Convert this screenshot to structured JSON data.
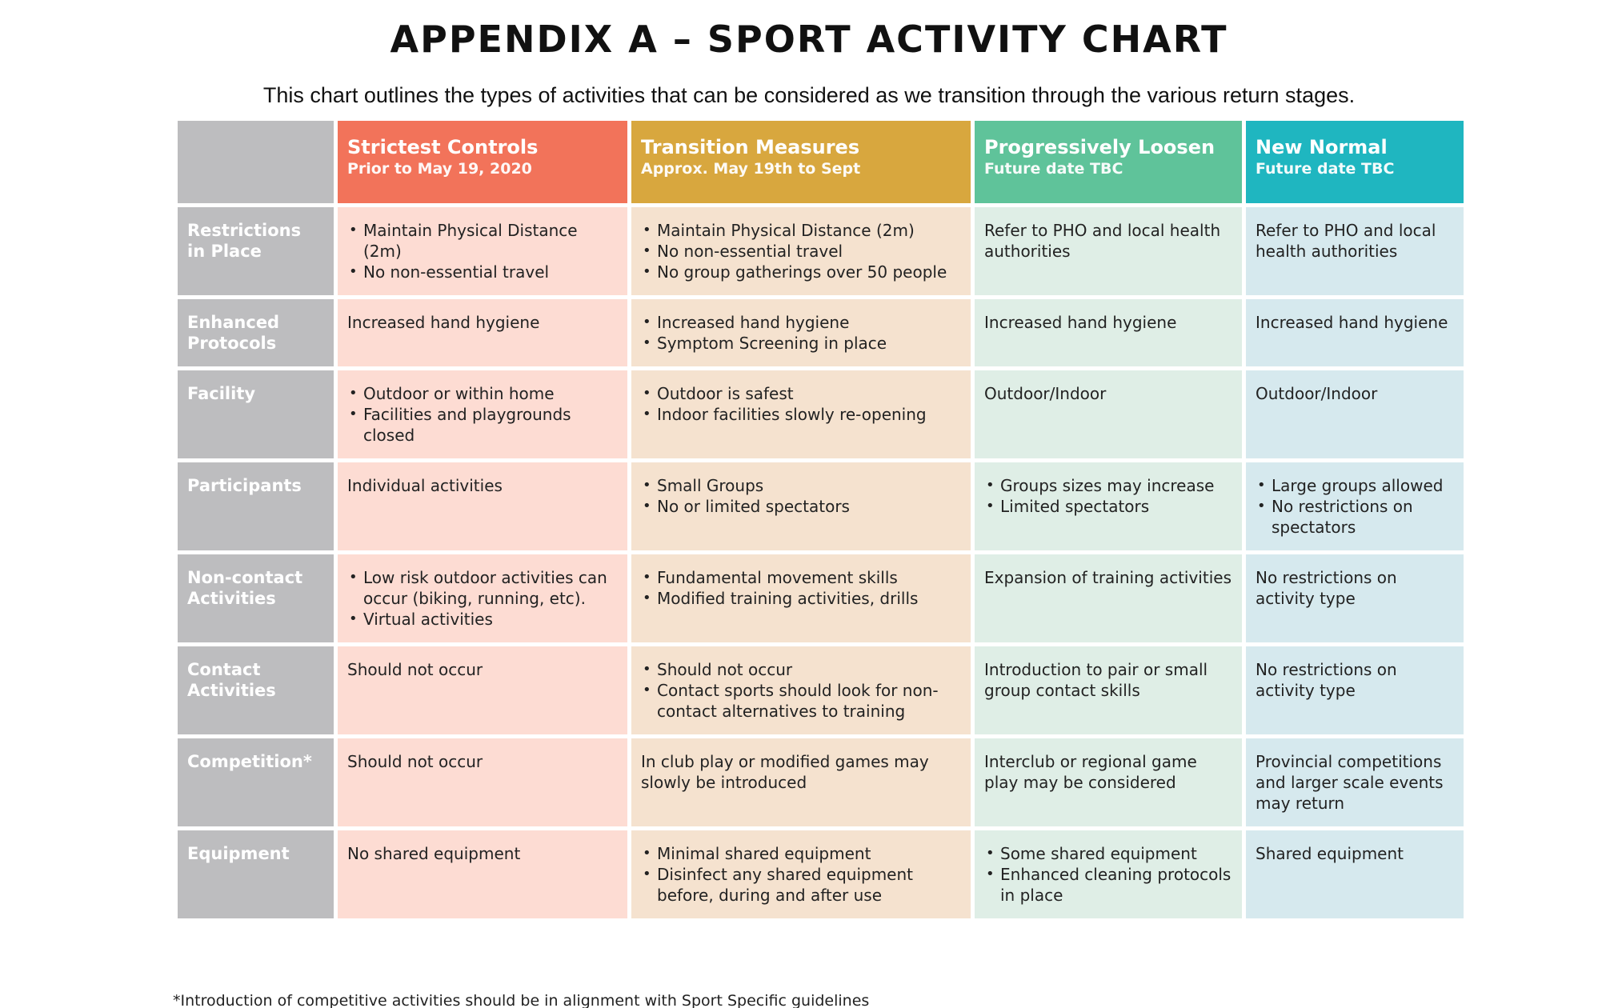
{
  "title": "APPENDIX A – SPORT ACTIVITY CHART",
  "subtitle": "This chart outlines the types of activities that can be considered as we transition through the various return stages.",
  "colors": {
    "strictest": "#f2735a",
    "transition": "#d8a73e",
    "loosen": "#5fc39a",
    "new_normal": "#1fb6c0",
    "row_header": "#bdbdbf"
  },
  "stages": [
    {
      "name": "Strictest Controls",
      "date": "Prior to May 19, 2020"
    },
    {
      "name": "Transition Measures",
      "date": "Approx. May 19th to Sept"
    },
    {
      "name": "Progressively Loosen",
      "date": "Future date TBC"
    },
    {
      "name": "New Normal",
      "date": "Future date TBC"
    }
  ],
  "rows": [
    {
      "label": "Restrictions in Place",
      "cells": [
        [
          "Maintain Physical Distance (2m)",
          "No non-essential travel"
        ],
        [
          "Maintain Physical Distance (2m)",
          "No non-essential travel",
          "No group gatherings over 50 people"
        ],
        "Refer to PHO and local health authorities",
        "Refer to PHO and local health authorities"
      ]
    },
    {
      "label": "Enhanced Protocols",
      "cells": [
        "Increased hand hygiene",
        [
          "Increased hand hygiene",
          "Symptom Screening in place"
        ],
        "Increased hand hygiene",
        "Increased hand hygiene"
      ]
    },
    {
      "label": "Facility",
      "cells": [
        [
          "Outdoor or within home",
          "Facilities and playgrounds closed"
        ],
        [
          "Outdoor is safest",
          "Indoor facilities slowly re-opening"
        ],
        "Outdoor/Indoor",
        "Outdoor/Indoor"
      ]
    },
    {
      "label": "Participants",
      "cells": [
        "Individual activities",
        [
          "Small Groups",
          "No or limited spectators"
        ],
        [
          "Groups sizes may increase",
          "Limited spectators"
        ],
        [
          "Large groups allowed",
          "No restrictions on spectators"
        ]
      ]
    },
    {
      "label": "Non-contact Activities",
      "cells": [
        [
          "Low risk outdoor activities can occur (biking, running, etc).",
          "Virtual activities"
        ],
        [
          "Fundamental movement skills",
          "Modified training activities, drills"
        ],
        "Expansion of training activities",
        "No restrictions on activity type"
      ]
    },
    {
      "label": "Contact Activities",
      "cells": [
        "Should not occur",
        [
          "Should not occur",
          "Contact sports should look for non-contact alternatives to training"
        ],
        "Introduction to pair or small group contact skills",
        "No restrictions on activity type"
      ]
    },
    {
      "label": "Competition*",
      "cells": [
        "Should not occur",
        "In club play or modified games may slowly be introduced",
        "Interclub or regional game play may be considered",
        "Provincial competitions and larger scale events may return"
      ]
    },
    {
      "label": "Equipment",
      "cells": [
        "No shared equipment",
        [
          "Minimal shared equipment",
          "Disinfect any shared equipment before, during and after use"
        ],
        [
          "Some shared equipment",
          "Enhanced cleaning protocols in place"
        ],
        "Shared equipment"
      ]
    }
  ],
  "footnote": "*Introduction of competitive activities should be in alignment with Sport Specific guidelines"
}
